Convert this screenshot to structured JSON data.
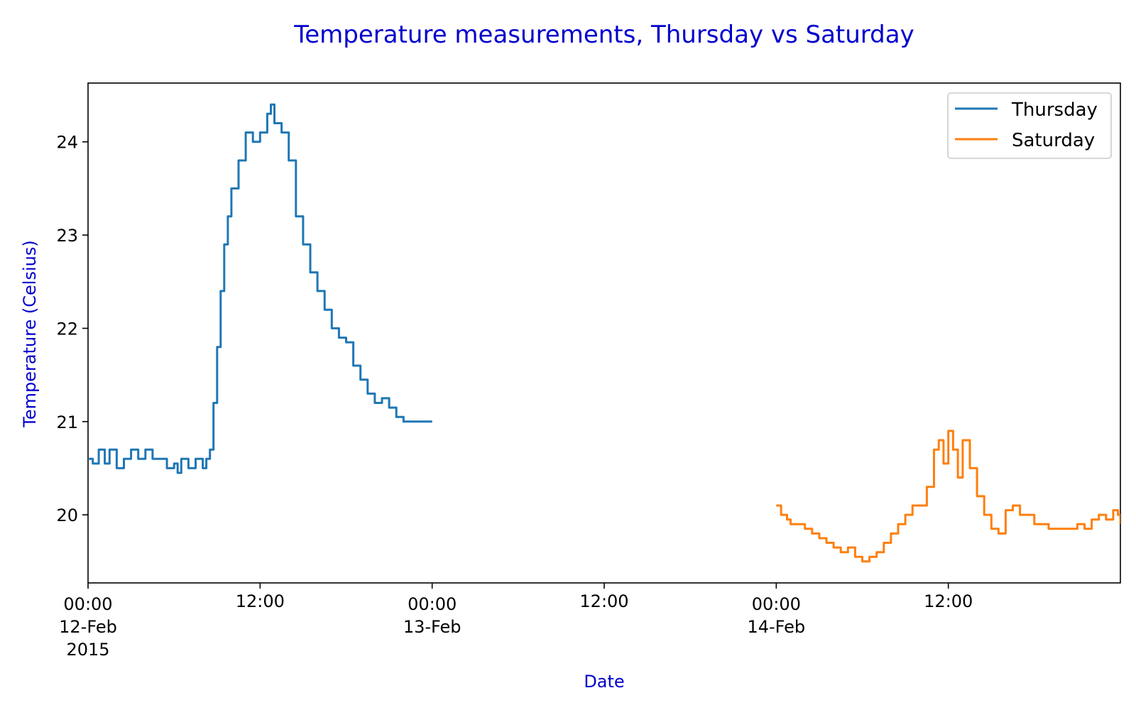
{
  "chart_data": {
    "type": "line",
    "title": "Temperature measurements, Thursday vs Saturday",
    "xlabel": "Date",
    "ylabel": "Temperature (Celsius)",
    "label_color": "#0000cc",
    "x_range": [
      "2015-02-12 00:00",
      "2015-02-15 00:00"
    ],
    "ylim": [
      19.27,
      24.63
    ],
    "grid": false,
    "legend_position": "top-right",
    "x_ticks": [
      {
        "at": "2015-02-12 00:00",
        "lines": [
          "00:00",
          "12-Feb",
          "2015"
        ]
      },
      {
        "at": "2015-02-12 12:00",
        "lines": [
          "12:00"
        ]
      },
      {
        "at": "2015-02-13 00:00",
        "lines": [
          "00:00",
          "13-Feb"
        ]
      },
      {
        "at": "2015-02-13 12:00",
        "lines": [
          "12:00"
        ]
      },
      {
        "at": "2015-02-14 00:00",
        "lines": [
          "00:00",
          "14-Feb"
        ]
      },
      {
        "at": "2015-02-14 12:00",
        "lines": [
          "12:00"
        ]
      }
    ],
    "y_ticks": [
      20,
      21,
      22,
      23,
      24
    ],
    "series": [
      {
        "name": "Thursday",
        "color": "#1f77b4",
        "points": [
          [
            "2015-02-12 00:00",
            20.6
          ],
          [
            "2015-02-12 00:20",
            20.55
          ],
          [
            "2015-02-12 00:45",
            20.7
          ],
          [
            "2015-02-12 01:10",
            20.55
          ],
          [
            "2015-02-12 01:30",
            20.7
          ],
          [
            "2015-02-12 02:00",
            20.5
          ],
          [
            "2015-02-12 02:30",
            20.6
          ],
          [
            "2015-02-12 03:00",
            20.7
          ],
          [
            "2015-02-12 03:30",
            20.6
          ],
          [
            "2015-02-12 04:00",
            20.7
          ],
          [
            "2015-02-12 04:30",
            20.6
          ],
          [
            "2015-02-12 05:00",
            20.6
          ],
          [
            "2015-02-12 05:30",
            20.5
          ],
          [
            "2015-02-12 06:00",
            20.55
          ],
          [
            "2015-02-12 06:15",
            20.45
          ],
          [
            "2015-02-12 06:30",
            20.6
          ],
          [
            "2015-02-12 07:00",
            20.5
          ],
          [
            "2015-02-12 07:30",
            20.6
          ],
          [
            "2015-02-12 08:00",
            20.5
          ],
          [
            "2015-02-12 08:15",
            20.6
          ],
          [
            "2015-02-12 08:30",
            20.7
          ],
          [
            "2015-02-12 08:45",
            21.2
          ],
          [
            "2015-02-12 09:00",
            21.8
          ],
          [
            "2015-02-12 09:15",
            22.4
          ],
          [
            "2015-02-12 09:30",
            22.9
          ],
          [
            "2015-02-12 09:45",
            23.2
          ],
          [
            "2015-02-12 10:00",
            23.5
          ],
          [
            "2015-02-12 10:30",
            23.8
          ],
          [
            "2015-02-12 11:00",
            24.1
          ],
          [
            "2015-02-12 11:30",
            24.0
          ],
          [
            "2015-02-12 12:00",
            24.1
          ],
          [
            "2015-02-12 12:30",
            24.3
          ],
          [
            "2015-02-12 12:45",
            24.4
          ],
          [
            "2015-02-12 13:00",
            24.2
          ],
          [
            "2015-02-12 13:30",
            24.1
          ],
          [
            "2015-02-12 14:00",
            23.8
          ],
          [
            "2015-02-12 14:30",
            23.2
          ],
          [
            "2015-02-12 15:00",
            22.9
          ],
          [
            "2015-02-12 15:30",
            22.6
          ],
          [
            "2015-02-12 16:00",
            22.4
          ],
          [
            "2015-02-12 16:30",
            22.2
          ],
          [
            "2015-02-12 17:00",
            22.0
          ],
          [
            "2015-02-12 17:30",
            21.9
          ],
          [
            "2015-02-12 18:00",
            21.85
          ],
          [
            "2015-02-12 18:30",
            21.6
          ],
          [
            "2015-02-12 19:00",
            21.45
          ],
          [
            "2015-02-12 19:30",
            21.3
          ],
          [
            "2015-02-12 20:00",
            21.2
          ],
          [
            "2015-02-12 20:30",
            21.25
          ],
          [
            "2015-02-12 21:00",
            21.15
          ],
          [
            "2015-02-12 21:30",
            21.05
          ],
          [
            "2015-02-12 22:00",
            21.0
          ],
          [
            "2015-02-12 23:00",
            21.0
          ],
          [
            "2015-02-13 00:00",
            21.0
          ]
        ]
      },
      {
        "name": "Saturday",
        "color": "#ff7f0e",
        "points": [
          [
            "2015-02-14 00:00",
            20.1
          ],
          [
            "2015-02-14 00:20",
            20.0
          ],
          [
            "2015-02-14 00:45",
            19.95
          ],
          [
            "2015-02-14 01:00",
            19.9
          ],
          [
            "2015-02-14 02:00",
            19.85
          ],
          [
            "2015-02-14 02:30",
            19.8
          ],
          [
            "2015-02-14 03:00",
            19.75
          ],
          [
            "2015-02-14 03:30",
            19.7
          ],
          [
            "2015-02-14 04:00",
            19.65
          ],
          [
            "2015-02-14 04:30",
            19.6
          ],
          [
            "2015-02-14 05:00",
            19.65
          ],
          [
            "2015-02-14 05:30",
            19.55
          ],
          [
            "2015-02-14 06:00",
            19.5
          ],
          [
            "2015-02-14 06:30",
            19.55
          ],
          [
            "2015-02-14 07:00",
            19.6
          ],
          [
            "2015-02-14 07:30",
            19.7
          ],
          [
            "2015-02-14 08:00",
            19.8
          ],
          [
            "2015-02-14 08:30",
            19.9
          ],
          [
            "2015-02-14 09:00",
            20.0
          ],
          [
            "2015-02-14 09:30",
            20.1
          ],
          [
            "2015-02-14 10:00",
            20.1
          ],
          [
            "2015-02-14 10:30",
            20.3
          ],
          [
            "2015-02-14 11:00",
            20.7
          ],
          [
            "2015-02-14 11:20",
            20.8
          ],
          [
            "2015-02-14 11:40",
            20.55
          ],
          [
            "2015-02-14 12:00",
            20.9
          ],
          [
            "2015-02-14 12:20",
            20.7
          ],
          [
            "2015-02-14 12:40",
            20.4
          ],
          [
            "2015-02-14 13:00",
            20.8
          ],
          [
            "2015-02-14 13:30",
            20.5
          ],
          [
            "2015-02-14 14:00",
            20.2
          ],
          [
            "2015-02-14 14:30",
            20.0
          ],
          [
            "2015-02-14 15:00",
            19.85
          ],
          [
            "2015-02-14 15:30",
            19.8
          ],
          [
            "2015-02-14 16:00",
            20.05
          ],
          [
            "2015-02-14 16:30",
            20.1
          ],
          [
            "2015-02-14 17:00",
            20.0
          ],
          [
            "2015-02-14 18:00",
            19.9
          ],
          [
            "2015-02-14 19:00",
            19.85
          ],
          [
            "2015-02-14 20:00",
            19.85
          ],
          [
            "2015-02-14 21:00",
            19.9
          ],
          [
            "2015-02-14 21:30",
            19.85
          ],
          [
            "2015-02-14 22:00",
            19.95
          ],
          [
            "2015-02-14 22:30",
            20.0
          ],
          [
            "2015-02-14 23:00",
            19.95
          ],
          [
            "2015-02-14 23:30",
            20.05
          ],
          [
            "2015-02-14 23:50",
            20.0
          ],
          [
            "2015-02-15 00:00",
            19.9
          ]
        ]
      }
    ]
  }
}
